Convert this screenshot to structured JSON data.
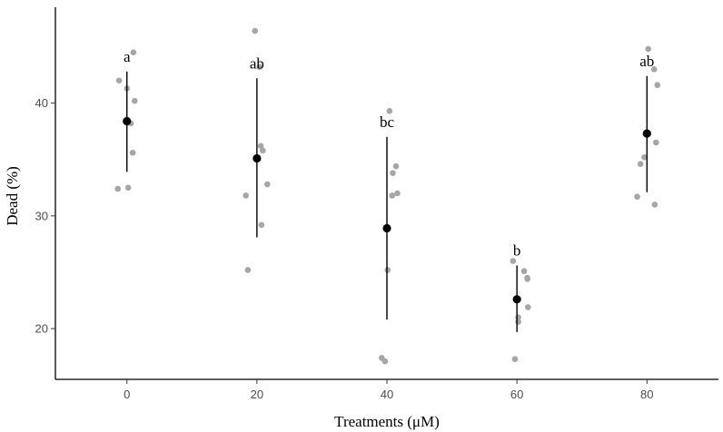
{
  "chart_data": {
    "type": "scatter",
    "title": "",
    "xlabel": "Treatments (μM)",
    "ylabel": "Dead (%)",
    "xlim": [
      -11,
      91
    ],
    "ylim": [
      15.5,
      48.5
    ],
    "x_ticks": [
      0,
      20,
      40,
      60,
      80
    ],
    "y_ticks": [
      20,
      30,
      40
    ],
    "grid": false,
    "legend": "none",
    "point_color": "#a6a6a6",
    "mean_color": "#000000",
    "groups": [
      {
        "x": 0,
        "label": "a",
        "mean": 38.4,
        "lower": 33.9,
        "upper": 42.8,
        "points": [
          {
            "x": -1.2,
            "y": 42.0
          },
          {
            "x": 1.0,
            "y": 44.5
          },
          {
            "x": 0.0,
            "y": 41.3
          },
          {
            "x": 1.2,
            "y": 40.2
          },
          {
            "x": 0.6,
            "y": 38.2
          },
          {
            "x": 0.9,
            "y": 35.6
          },
          {
            "x": -1.4,
            "y": 32.4
          },
          {
            "x": 0.2,
            "y": 32.5
          }
        ]
      },
      {
        "x": 20,
        "label": "ab",
        "mean": 35.1,
        "lower": 28.1,
        "upper": 42.2,
        "points": [
          {
            "x": -0.3,
            "y": 46.4
          },
          {
            "x": 0.4,
            "y": 43.2
          },
          {
            "x": 0.6,
            "y": 36.2
          },
          {
            "x": 0.9,
            "y": 35.8
          },
          {
            "x": 1.6,
            "y": 32.8
          },
          {
            "x": -1.7,
            "y": 31.8
          },
          {
            "x": 0.7,
            "y": 29.2
          },
          {
            "x": -1.4,
            "y": 25.2
          }
        ]
      },
      {
        "x": 40,
        "label": "bc",
        "mean": 28.9,
        "lower": 20.8,
        "upper": 37.0,
        "points": [
          {
            "x": 0.4,
            "y": 39.3
          },
          {
            "x": 1.4,
            "y": 34.4
          },
          {
            "x": 0.9,
            "y": 33.8
          },
          {
            "x": 1.6,
            "y": 32.0
          },
          {
            "x": 0.8,
            "y": 31.8
          },
          {
            "x": 0.1,
            "y": 25.2
          },
          {
            "x": -0.8,
            "y": 17.4
          },
          {
            "x": -0.3,
            "y": 17.1
          }
        ]
      },
      {
        "x": 60,
        "label": "b",
        "mean": 22.6,
        "lower": 19.7,
        "upper": 25.6,
        "points": [
          {
            "x": -0.6,
            "y": 26.0
          },
          {
            "x": 1.1,
            "y": 25.1
          },
          {
            "x": 1.6,
            "y": 24.5
          },
          {
            "x": 1.6,
            "y": 24.4
          },
          {
            "x": 1.7,
            "y": 21.9
          },
          {
            "x": 0.2,
            "y": 21.0
          },
          {
            "x": 0.2,
            "y": 20.6
          },
          {
            "x": -0.3,
            "y": 17.3
          }
        ]
      },
      {
        "x": 80,
        "label": "ab",
        "mean": 37.3,
        "lower": 32.1,
        "upper": 42.4,
        "points": [
          {
            "x": 0.2,
            "y": 44.8
          },
          {
            "x": 1.1,
            "y": 43.0
          },
          {
            "x": 1.6,
            "y": 41.6
          },
          {
            "x": 1.4,
            "y": 36.5
          },
          {
            "x": -1.0,
            "y": 34.6
          },
          {
            "x": -0.4,
            "y": 35.2
          },
          {
            "x": -1.5,
            "y": 31.7
          },
          {
            "x": 1.2,
            "y": 31.0
          }
        ]
      }
    ]
  }
}
